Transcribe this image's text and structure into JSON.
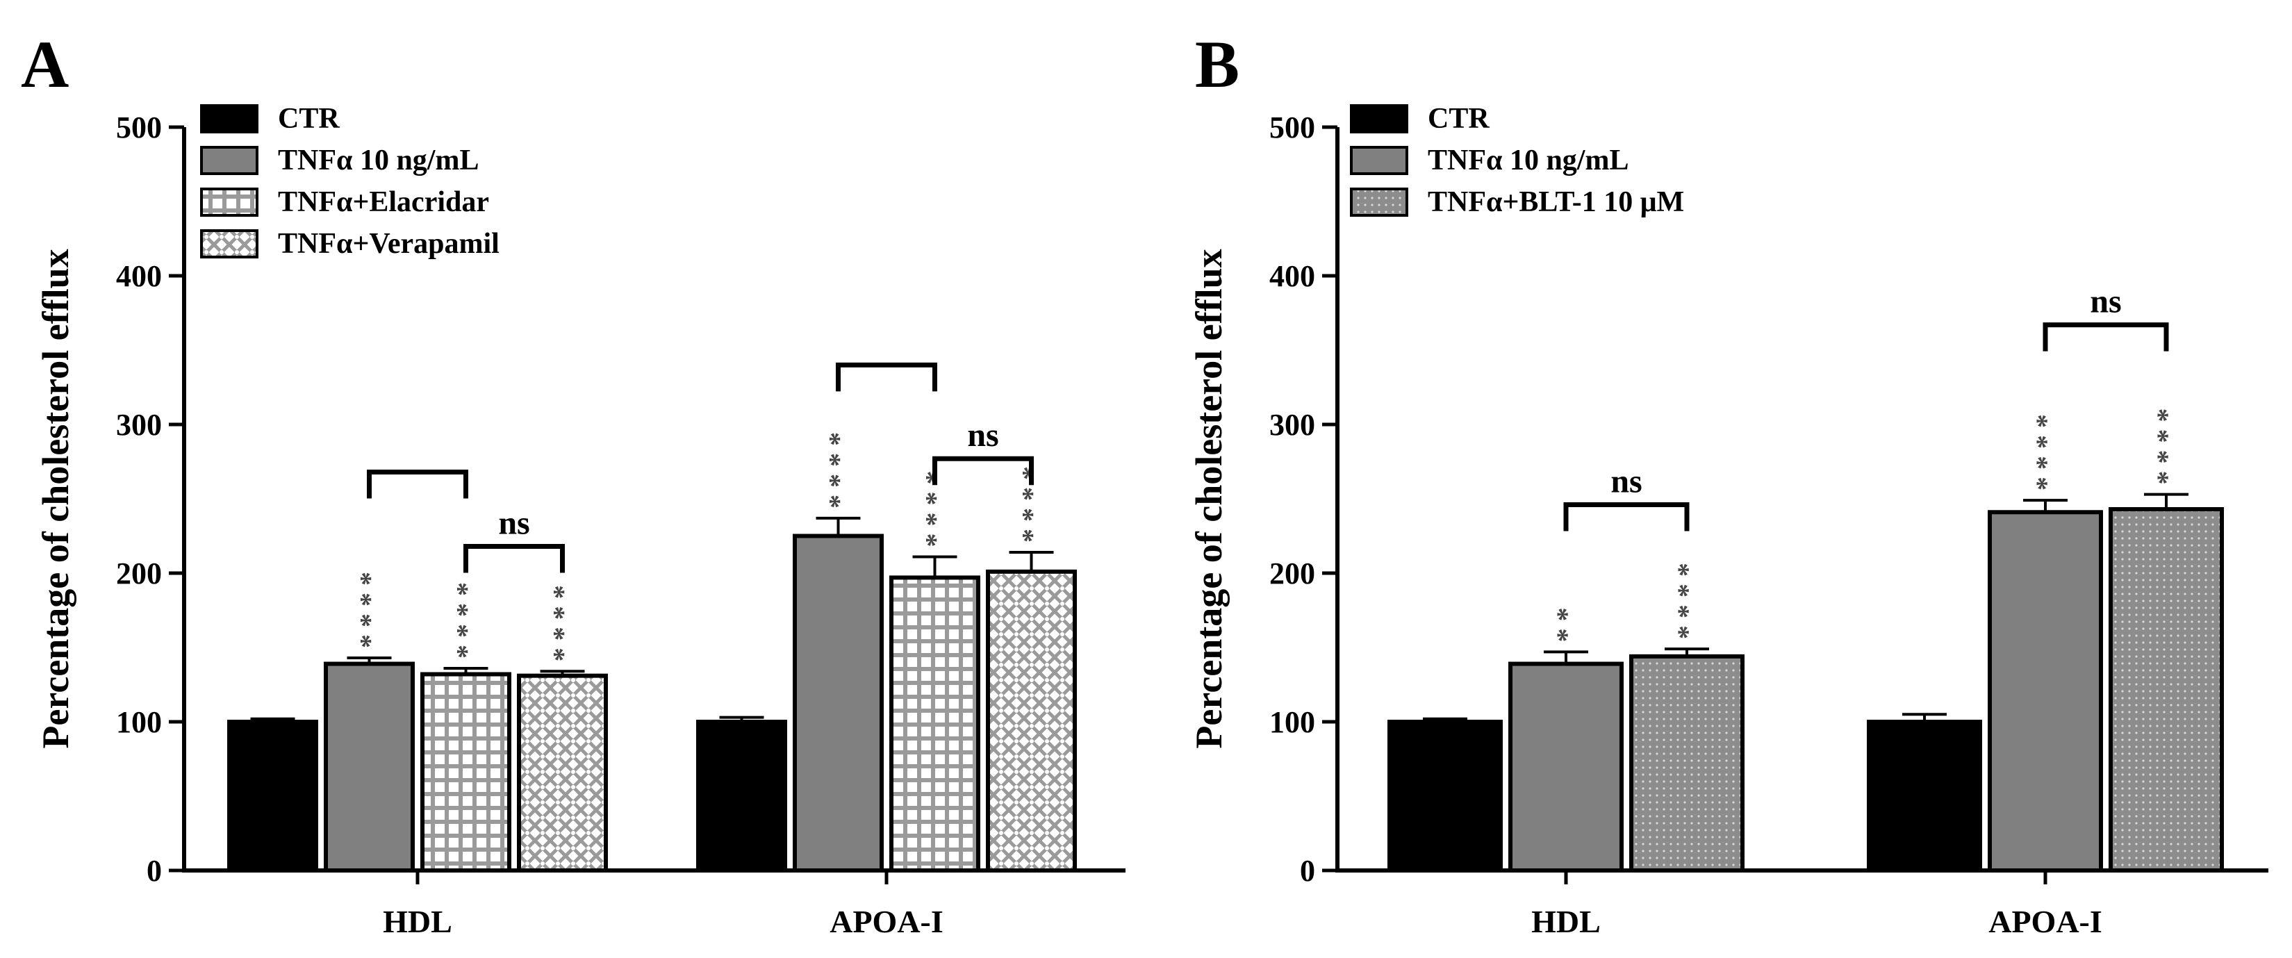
{
  "chart_data": [
    {
      "panel": "A",
      "type": "bar",
      "ylabel": "Percentage of cholesterol efflux",
      "ylim": [
        0,
        500
      ],
      "yticks": [
        0,
        100,
        200,
        300,
        400,
        500
      ],
      "categories": [
        "HDL",
        "APOA-I"
      ],
      "series": [
        {
          "name": "CTR",
          "pattern": "solid-black",
          "values": [
            100,
            100
          ],
          "errors": [
            2,
            3
          ],
          "stars": [
            "",
            ""
          ]
        },
        {
          "name": "TNFα 10 ng/mL",
          "pattern": "solid-gray",
          "values": [
            139,
            225
          ],
          "errors": [
            4,
            12
          ],
          "stars": [
            "****",
            "****"
          ]
        },
        {
          "name": "TNFα+Elacridar",
          "pattern": "grid",
          "values": [
            132,
            197
          ],
          "errors": [
            4,
            14
          ],
          "stars": [
            "****",
            "****"
          ]
        },
        {
          "name": "TNFα+Verapamil",
          "pattern": "crosshatch",
          "values": [
            131,
            201
          ],
          "errors": [
            3,
            13
          ],
          "stars": [
            "****",
            "****"
          ]
        }
      ],
      "brackets": [
        {
          "category": 0,
          "from": 1,
          "to": 2,
          "y": 268,
          "label": ""
        },
        {
          "category": 0,
          "from": 2,
          "to": 3,
          "y": 218,
          "label": "ns"
        },
        {
          "category": 1,
          "from": 1,
          "to": 2,
          "y": 340,
          "label": ""
        },
        {
          "category": 1,
          "from": 2,
          "to": 3,
          "y": 277,
          "label": "ns"
        }
      ]
    },
    {
      "panel": "B",
      "type": "bar",
      "ylabel": "Percentage of cholesterol efflux",
      "ylim": [
        0,
        500
      ],
      "yticks": [
        0,
        100,
        200,
        300,
        400,
        500
      ],
      "categories": [
        "HDL",
        "APOA-I"
      ],
      "series": [
        {
          "name": "CTR",
          "pattern": "solid-black",
          "values": [
            100,
            100
          ],
          "errors": [
            2,
            5
          ],
          "stars": [
            "",
            ""
          ]
        },
        {
          "name": "TNFα 10 ng/mL",
          "pattern": "solid-gray",
          "values": [
            139,
            241
          ],
          "errors": [
            8,
            8
          ],
          "stars": [
            "**",
            "****"
          ]
        },
        {
          "name": "TNFα+BLT-1 10 μM",
          "pattern": "dots",
          "values": [
            144,
            243
          ],
          "errors": [
            5,
            10
          ],
          "stars": [
            "****",
            "****"
          ]
        }
      ],
      "brackets": [
        {
          "category": 0,
          "from": 1,
          "to": 2,
          "y": 246,
          "label": "ns"
        },
        {
          "category": 1,
          "from": 1,
          "to": 2,
          "y": 367,
          "label": "ns"
        }
      ]
    }
  ]
}
